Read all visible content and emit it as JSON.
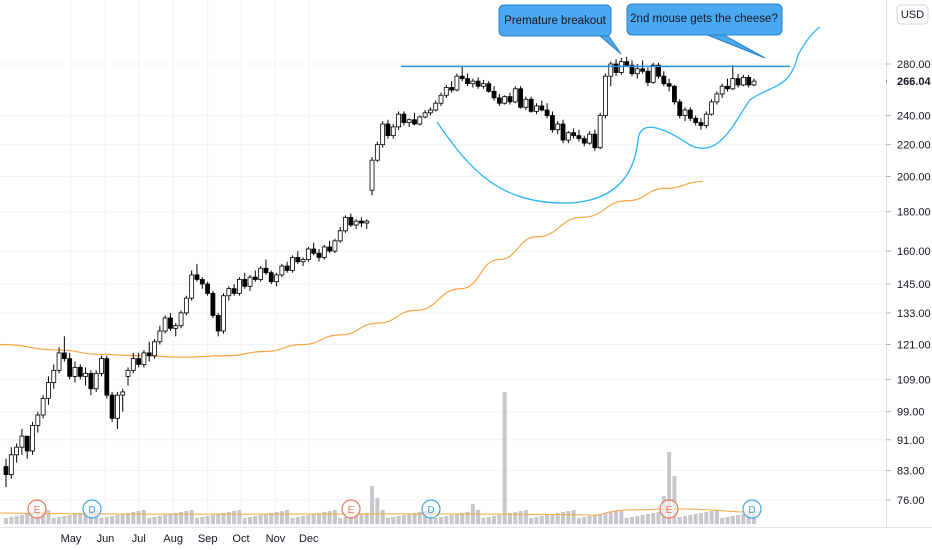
{
  "chart_data": {
    "type": "candlestick",
    "scale": "log",
    "ylim": [
      70,
      330
    ],
    "currency": "USD",
    "last_price": "266.04",
    "ytick_labels": [
      "280.00",
      "240.00",
      "220.00",
      "200.00",
      "180.00",
      "160.00",
      "145.00",
      "133.00",
      "121.00",
      "109.00",
      "99.00",
      "91.00",
      "83.00",
      "76.00"
    ],
    "ytick_values": [
      280,
      240,
      220,
      200,
      180,
      160,
      145,
      133,
      121,
      109,
      99,
      91,
      83,
      76
    ],
    "xtick_labels": [
      "May",
      "Jun",
      "Jul",
      "Aug",
      "Sep",
      "Oct",
      "Nov",
      "Dec"
    ],
    "xtick_dates": [
      "2020-05-01",
      "2020-06-01",
      "2020-07-01",
      "2020-08-01",
      "2020-09-01",
      "2020-10-01",
      "2020-11-01",
      "2020-12-01"
    ],
    "colors": {
      "up": "#ffffff",
      "down": "#000000",
      "wick": "#000000",
      "ma": "#f7a440",
      "resistance": "#2a8fdc",
      "cup": "#29b6f6",
      "callout_fill": "#4aa8f0",
      "volume": "#c7c7cc",
      "volume_ma": "#f7a440",
      "event_orange": "#e8765a",
      "event_blue": "#3ca8e0"
    },
    "candles": [
      {
        "o": 84,
        "h": 86,
        "l": 79,
        "c": 82
      },
      {
        "o": 82,
        "h": 89,
        "l": 81,
        "c": 87
      },
      {
        "o": 87,
        "h": 90,
        "l": 85,
        "c": 89
      },
      {
        "o": 89,
        "h": 94,
        "l": 87,
        "c": 92
      },
      {
        "o": 92,
        "h": 91,
        "l": 86,
        "c": 88
      },
      {
        "o": 88,
        "h": 96,
        "l": 87,
        "c": 95
      },
      {
        "o": 95,
        "h": 99,
        "l": 93,
        "c": 98
      },
      {
        "o": 98,
        "h": 104,
        "l": 97,
        "c": 103
      },
      {
        "o": 103,
        "h": 110,
        "l": 101,
        "c": 108
      },
      {
        "o": 108,
        "h": 114,
        "l": 106,
        "c": 112
      },
      {
        "o": 112,
        "h": 120,
        "l": 111,
        "c": 118
      },
      {
        "o": 118,
        "h": 124,
        "l": 115,
        "c": 116
      },
      {
        "o": 116,
        "h": 118,
        "l": 109,
        "c": 110
      },
      {
        "o": 110,
        "h": 115,
        "l": 108,
        "c": 113
      },
      {
        "o": 113,
        "h": 114,
        "l": 109,
        "c": 110
      },
      {
        "o": 110,
        "h": 113,
        "l": 107,
        "c": 111
      },
      {
        "o": 111,
        "h": 112,
        "l": 104,
        "c": 106
      },
      {
        "o": 106,
        "h": 112,
        "l": 105,
        "c": 111
      },
      {
        "o": 111,
        "h": 117,
        "l": 110,
        "c": 116
      },
      {
        "o": 116,
        "h": 117,
        "l": 103,
        "c": 104
      },
      {
        "o": 104,
        "h": 105,
        "l": 96,
        "c": 97
      },
      {
        "o": 97,
        "h": 105,
        "l": 94,
        "c": 104
      },
      {
        "o": 104,
        "h": 106,
        "l": 99,
        "c": 105
      },
      {
        "o": 110,
        "h": 113,
        "l": 107,
        "c": 112
      },
      {
        "o": 112,
        "h": 118,
        "l": 111,
        "c": 116
      },
      {
        "o": 116,
        "h": 118,
        "l": 113,
        "c": 114
      },
      {
        "o": 114,
        "h": 119,
        "l": 113,
        "c": 118
      },
      {
        "o": 118,
        "h": 122,
        "l": 115,
        "c": 117
      },
      {
        "o": 117,
        "h": 123,
        "l": 116,
        "c": 122
      },
      {
        "o": 122,
        "h": 128,
        "l": 121,
        "c": 126
      },
      {
        "o": 126,
        "h": 132,
        "l": 125,
        "c": 131
      },
      {
        "o": 131,
        "h": 133,
        "l": 126,
        "c": 127
      },
      {
        "o": 127,
        "h": 129,
        "l": 124,
        "c": 128
      },
      {
        "o": 128,
        "h": 134,
        "l": 127,
        "c": 133
      },
      {
        "o": 133,
        "h": 140,
        "l": 132,
        "c": 139
      },
      {
        "o": 139,
        "h": 151,
        "l": 138,
        "c": 149
      },
      {
        "o": 149,
        "h": 154,
        "l": 146,
        "c": 147
      },
      {
        "o": 147,
        "h": 148,
        "l": 143,
        "c": 145
      },
      {
        "o": 145,
        "h": 146,
        "l": 140,
        "c": 141
      },
      {
        "o": 141,
        "h": 142,
        "l": 131,
        "c": 132
      },
      {
        "o": 132,
        "h": 133,
        "l": 124,
        "c": 126
      },
      {
        "o": 126,
        "h": 141,
        "l": 125,
        "c": 140
      },
      {
        "o": 140,
        "h": 144,
        "l": 138,
        "c": 143
      },
      {
        "o": 143,
        "h": 145,
        "l": 140,
        "c": 141
      },
      {
        "o": 141,
        "h": 148,
        "l": 140,
        "c": 147
      },
      {
        "o": 147,
        "h": 150,
        "l": 143,
        "c": 144
      },
      {
        "o": 144,
        "h": 149,
        "l": 142,
        "c": 148
      },
      {
        "o": 148,
        "h": 151,
        "l": 146,
        "c": 147
      },
      {
        "o": 147,
        "h": 153,
        "l": 146,
        "c": 152
      },
      {
        "o": 152,
        "h": 156,
        "l": 149,
        "c": 150
      },
      {
        "o": 150,
        "h": 151,
        "l": 145,
        "c": 146
      },
      {
        "o": 146,
        "h": 150,
        "l": 144,
        "c": 149
      },
      {
        "o": 149,
        "h": 154,
        "l": 148,
        "c": 153
      },
      {
        "o": 153,
        "h": 155,
        "l": 150,
        "c": 151
      },
      {
        "o": 151,
        "h": 158,
        "l": 150,
        "c": 157
      },
      {
        "o": 157,
        "h": 160,
        "l": 154,
        "c": 155
      },
      {
        "o": 155,
        "h": 157,
        "l": 153,
        "c": 156
      },
      {
        "o": 156,
        "h": 162,
        "l": 155,
        "c": 161
      },
      {
        "o": 161,
        "h": 164,
        "l": 158,
        "c": 159
      },
      {
        "o": 159,
        "h": 161,
        "l": 155,
        "c": 157
      },
      {
        "o": 157,
        "h": 163,
        "l": 156,
        "c": 162
      },
      {
        "o": 162,
        "h": 165,
        "l": 159,
        "c": 160
      },
      {
        "o": 160,
        "h": 166,
        "l": 159,
        "c": 165
      },
      {
        "o": 165,
        "h": 172,
        "l": 164,
        "c": 170
      },
      {
        "o": 170,
        "h": 178,
        "l": 169,
        "c": 177
      },
      {
        "o": 177,
        "h": 179,
        "l": 172,
        "c": 173
      },
      {
        "o": 173,
        "h": 176,
        "l": 171,
        "c": 175
      },
      {
        "o": 175,
        "h": 177,
        "l": 172,
        "c": 174
      },
      {
        "o": 174,
        "h": 176,
        "l": 171,
        "c": 175
      },
      {
        "o": 192,
        "h": 212,
        "l": 189,
        "c": 210
      },
      {
        "o": 210,
        "h": 222,
        "l": 209,
        "c": 220
      },
      {
        "o": 220,
        "h": 236,
        "l": 218,
        "c": 234
      },
      {
        "o": 234,
        "h": 237,
        "l": 224,
        "c": 226
      },
      {
        "o": 226,
        "h": 234,
        "l": 224,
        "c": 232
      },
      {
        "o": 232,
        "h": 243,
        "l": 230,
        "c": 241
      },
      {
        "o": 241,
        "h": 243,
        "l": 233,
        "c": 235
      },
      {
        "o": 235,
        "h": 238,
        "l": 232,
        "c": 237
      },
      {
        "o": 237,
        "h": 242,
        "l": 233,
        "c": 234
      },
      {
        "o": 234,
        "h": 240,
        "l": 233,
        "c": 239
      },
      {
        "o": 239,
        "h": 244,
        "l": 238,
        "c": 242
      },
      {
        "o": 242,
        "h": 246,
        "l": 240,
        "c": 244
      },
      {
        "o": 244,
        "h": 251,
        "l": 243,
        "c": 249
      },
      {
        "o": 249,
        "h": 257,
        "l": 247,
        "c": 255
      },
      {
        "o": 255,
        "h": 263,
        "l": 253,
        "c": 261
      },
      {
        "o": 261,
        "h": 266,
        "l": 257,
        "c": 259
      },
      {
        "o": 259,
        "h": 272,
        "l": 258,
        "c": 270
      },
      {
        "o": 270,
        "h": 278,
        "l": 266,
        "c": 268
      },
      {
        "o": 268,
        "h": 272,
        "l": 262,
        "c": 264
      },
      {
        "o": 264,
        "h": 268,
        "l": 261,
        "c": 266
      },
      {
        "o": 266,
        "h": 269,
        "l": 260,
        "c": 262
      },
      {
        "o": 262,
        "h": 267,
        "l": 260,
        "c": 264
      },
      {
        "o": 264,
        "h": 266,
        "l": 257,
        "c": 258
      },
      {
        "o": 258,
        "h": 262,
        "l": 251,
        "c": 253
      },
      {
        "o": 253,
        "h": 256,
        "l": 247,
        "c": 249
      },
      {
        "o": 249,
        "h": 255,
        "l": 248,
        "c": 254
      },
      {
        "o": 254,
        "h": 257,
        "l": 248,
        "c": 250
      },
      {
        "o": 250,
        "h": 262,
        "l": 249,
        "c": 260
      },
      {
        "o": 260,
        "h": 262,
        "l": 245,
        "c": 246
      },
      {
        "o": 246,
        "h": 254,
        "l": 244,
        "c": 252
      },
      {
        "o": 252,
        "h": 254,
        "l": 242,
        "c": 243
      },
      {
        "o": 243,
        "h": 249,
        "l": 241,
        "c": 247
      },
      {
        "o": 247,
        "h": 251,
        "l": 243,
        "c": 244
      },
      {
        "o": 244,
        "h": 249,
        "l": 238,
        "c": 240
      },
      {
        "o": 240,
        "h": 243,
        "l": 228,
        "c": 230
      },
      {
        "o": 230,
        "h": 236,
        "l": 227,
        "c": 234
      },
      {
        "o": 234,
        "h": 237,
        "l": 221,
        "c": 223
      },
      {
        "o": 223,
        "h": 229,
        "l": 221,
        "c": 228
      },
      {
        "o": 228,
        "h": 231,
        "l": 224,
        "c": 226
      },
      {
        "o": 226,
        "h": 230,
        "l": 222,
        "c": 224
      },
      {
        "o": 224,
        "h": 226,
        "l": 219,
        "c": 221
      },
      {
        "o": 221,
        "h": 229,
        "l": 220,
        "c": 227
      },
      {
        "o": 227,
        "h": 230,
        "l": 216,
        "c": 218
      },
      {
        "o": 218,
        "h": 242,
        "l": 217,
        "c": 240
      },
      {
        "o": 240,
        "h": 272,
        "l": 238,
        "c": 270
      },
      {
        "o": 270,
        "h": 282,
        "l": 262,
        "c": 280
      },
      {
        "o": 280,
        "h": 284,
        "l": 270,
        "c": 273
      },
      {
        "o": 273,
        "h": 285,
        "l": 271,
        "c": 282
      },
      {
        "o": 282,
        "h": 286,
        "l": 278,
        "c": 279
      },
      {
        "o": 279,
        "h": 283,
        "l": 270,
        "c": 272
      },
      {
        "o": 272,
        "h": 280,
        "l": 268,
        "c": 276
      },
      {
        "o": 276,
        "h": 283,
        "l": 272,
        "c": 274
      },
      {
        "o": 274,
        "h": 277,
        "l": 262,
        "c": 265
      },
      {
        "o": 265,
        "h": 281,
        "l": 264,
        "c": 279
      },
      {
        "o": 279,
        "h": 281,
        "l": 268,
        "c": 270
      },
      {
        "o": 270,
        "h": 274,
        "l": 262,
        "c": 264
      },
      {
        "o": 264,
        "h": 268,
        "l": 258,
        "c": 262
      },
      {
        "o": 262,
        "h": 263,
        "l": 248,
        "c": 250
      },
      {
        "o": 250,
        "h": 252,
        "l": 238,
        "c": 240
      },
      {
        "o": 240,
        "h": 246,
        "l": 236,
        "c": 244
      },
      {
        "o": 244,
        "h": 246,
        "l": 236,
        "c": 238
      },
      {
        "o": 238,
        "h": 240,
        "l": 233,
        "c": 235
      },
      {
        "o": 235,
        "h": 238,
        "l": 230,
        "c": 233
      },
      {
        "o": 233,
        "h": 243,
        "l": 231,
        "c": 241
      },
      {
        "o": 241,
        "h": 252,
        "l": 240,
        "c": 250
      },
      {
        "o": 250,
        "h": 258,
        "l": 248,
        "c": 256
      },
      {
        "o": 256,
        "h": 264,
        "l": 253,
        "c": 262
      },
      {
        "o": 262,
        "h": 268,
        "l": 258,
        "c": 260
      },
      {
        "o": 260,
        "h": 279,
        "l": 259,
        "c": 268
      },
      {
        "o": 268,
        "h": 272,
        "l": 261,
        "c": 263
      },
      {
        "o": 263,
        "h": 271,
        "l": 262,
        "c": 269
      },
      {
        "o": 269,
        "h": 271,
        "l": 261,
        "c": 263
      },
      {
        "o": 263,
        "h": 268,
        "l": 262,
        "c": 266
      }
    ],
    "ma_points": [
      [
        121,
        0
      ],
      [
        119,
        0.08
      ],
      [
        117.5,
        0.13
      ],
      [
        117,
        0.19
      ],
      [
        116.5,
        0.24
      ],
      [
        117,
        0.3
      ],
      [
        118.5,
        0.35
      ],
      [
        121,
        0.4
      ],
      [
        124.5,
        0.45
      ],
      [
        129,
        0.5
      ],
      [
        134,
        0.55
      ],
      [
        143,
        0.61
      ],
      [
        156,
        0.66
      ],
      [
        167,
        0.71
      ],
      [
        177,
        0.77
      ],
      [
        186,
        0.83
      ],
      [
        193,
        0.88
      ],
      [
        197,
        0.93
      ]
    ],
    "resistance_level": 278,
    "annotations": [
      "Premature breakout",
      "2nd mouse gets the cheese?"
    ],
    "events": [
      {
        "label": "E",
        "type": "earnings"
      },
      {
        "label": "D",
        "type": "dividend"
      },
      {
        "label": "E",
        "type": "earnings"
      },
      {
        "label": "D",
        "type": "dividend"
      },
      {
        "label": "E",
        "type": "earnings"
      },
      {
        "label": "D",
        "type": "dividend"
      }
    ]
  }
}
